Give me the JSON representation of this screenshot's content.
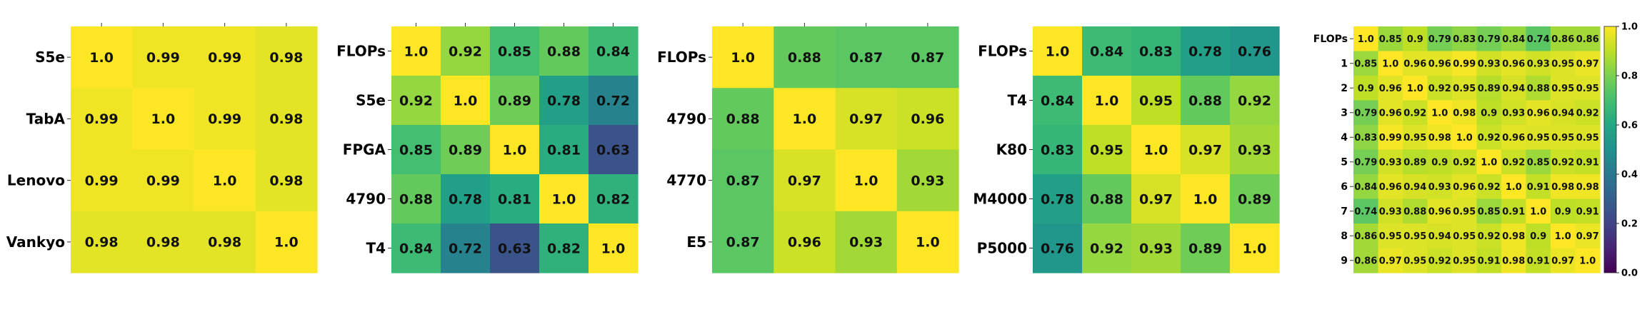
{
  "colorbar": {
    "ticks": [
      "0.0",
      "0.2",
      "0.4",
      "0.6",
      "0.8",
      "1.0"
    ],
    "tick_values": [
      0.0,
      0.2,
      0.4,
      0.6,
      0.8,
      1.0
    ],
    "range": [
      0.0,
      1.0
    ],
    "colormap": "viridis"
  },
  "chart_data": [
    {
      "type": "heatmap",
      "labels": [
        "S5e",
        "TabA",
        "Lenovo",
        "Vankyo"
      ],
      "show_xticks": true,
      "matrix": [
        [
          1.0,
          0.99,
          0.99,
          0.98
        ],
        [
          0.99,
          1.0,
          0.99,
          0.98
        ],
        [
          0.99,
          0.99,
          1.0,
          0.98
        ],
        [
          0.98,
          0.98,
          0.98,
          1.0
        ]
      ],
      "cell_text": [
        [
          "1.0",
          "0.99",
          "0.99",
          "0.98"
        ],
        [
          "0.99",
          "1.0",
          "0.99",
          "0.98"
        ],
        [
          "0.99",
          "0.99",
          "1.0",
          "0.98"
        ],
        [
          "0.98",
          "0.98",
          "0.98",
          "1.0"
        ]
      ]
    },
    {
      "type": "heatmap",
      "labels": [
        "FLOPs",
        "S5e",
        "FPGA",
        "4790",
        "T4"
      ],
      "show_xticks": true,
      "matrix": [
        [
          1.0,
          0.92,
          0.85,
          0.88,
          0.84
        ],
        [
          0.92,
          1.0,
          0.89,
          0.78,
          0.72
        ],
        [
          0.85,
          0.89,
          1.0,
          0.81,
          0.63
        ],
        [
          0.88,
          0.78,
          0.81,
          1.0,
          0.82
        ],
        [
          0.84,
          0.72,
          0.63,
          0.82,
          1.0
        ]
      ],
      "cell_text": [
        [
          "1.0",
          "0.92",
          "0.85",
          "0.88",
          "0.84"
        ],
        [
          "0.92",
          "1.0",
          "0.89",
          "0.78",
          "0.72"
        ],
        [
          "0.85",
          "0.89",
          "1.0",
          "0.81",
          "0.63"
        ],
        [
          "0.88",
          "0.78",
          "0.81",
          "1.0",
          "0.82"
        ],
        [
          "0.84",
          "0.72",
          "0.63",
          "0.82",
          "1.0"
        ]
      ]
    },
    {
      "type": "heatmap",
      "labels": [
        "FLOPs",
        "4790",
        "4770",
        "E5"
      ],
      "show_xticks": true,
      "matrix": [
        [
          1.0,
          0.88,
          0.87,
          0.87
        ],
        [
          0.88,
          1.0,
          0.97,
          0.96
        ],
        [
          0.87,
          0.97,
          1.0,
          0.93
        ],
        [
          0.87,
          0.96,
          0.93,
          1.0
        ]
      ],
      "cell_text": [
        [
          "1.0",
          "0.88",
          "0.87",
          "0.87"
        ],
        [
          "0.88",
          "1.0",
          "0.97",
          "0.96"
        ],
        [
          "0.87",
          "0.97",
          "1.0",
          "0.93"
        ],
        [
          "0.87",
          "0.96",
          "0.93",
          "1.0"
        ]
      ]
    },
    {
      "type": "heatmap",
      "labels": [
        "FLOPs",
        "T4",
        "K80",
        "M4000",
        "P5000"
      ],
      "show_xticks": false,
      "matrix": [
        [
          1.0,
          0.84,
          0.83,
          0.78,
          0.76
        ],
        [
          0.84,
          1.0,
          0.95,
          0.88,
          0.92
        ],
        [
          0.83,
          0.95,
          1.0,
          0.97,
          0.93
        ],
        [
          0.78,
          0.88,
          0.97,
          1.0,
          0.89
        ],
        [
          0.76,
          0.92,
          0.93,
          0.89,
          1.0
        ]
      ],
      "cell_text": [
        [
          "1.0",
          "0.84",
          "0.83",
          "0.78",
          "0.76"
        ],
        [
          "0.84",
          "1.0",
          "0.95",
          "0.88",
          "0.92"
        ],
        [
          "0.83",
          "0.95",
          "1.0",
          "0.97",
          "0.93"
        ],
        [
          "0.78",
          "0.88",
          "0.97",
          "1.0",
          "0.89"
        ],
        [
          "0.76",
          "0.92",
          "0.93",
          "0.89",
          "1.0"
        ]
      ]
    },
    {
      "type": "heatmap",
      "labels": [
        "FLOPs",
        "1",
        "2",
        "3",
        "4",
        "5",
        "6",
        "7",
        "8",
        "9"
      ],
      "show_xticks": false,
      "matrix": [
        [
          1.0,
          0.85,
          0.9,
          0.79,
          0.83,
          0.79,
          0.84,
          0.74,
          0.86,
          0.86
        ],
        [
          0.85,
          1.0,
          0.96,
          0.96,
          0.99,
          0.93,
          0.96,
          0.93,
          0.95,
          0.97
        ],
        [
          0.9,
          0.96,
          1.0,
          0.92,
          0.95,
          0.89,
          0.94,
          0.88,
          0.95,
          0.95
        ],
        [
          0.79,
          0.96,
          0.92,
          1.0,
          0.98,
          0.9,
          0.93,
          0.96,
          0.94,
          0.92
        ],
        [
          0.83,
          0.99,
          0.95,
          0.98,
          1.0,
          0.92,
          0.96,
          0.95,
          0.95,
          0.95
        ],
        [
          0.79,
          0.93,
          0.89,
          0.9,
          0.92,
          1.0,
          0.92,
          0.85,
          0.92,
          0.91
        ],
        [
          0.84,
          0.96,
          0.94,
          0.93,
          0.96,
          0.92,
          1.0,
          0.91,
          0.98,
          0.98
        ],
        [
          0.74,
          0.93,
          0.88,
          0.96,
          0.95,
          0.85,
          0.91,
          1.0,
          0.9,
          0.91
        ],
        [
          0.86,
          0.95,
          0.95,
          0.94,
          0.95,
          0.92,
          0.98,
          0.9,
          1.0,
          0.97
        ],
        [
          0.86,
          0.97,
          0.95,
          0.92,
          0.95,
          0.91,
          0.98,
          0.91,
          0.97,
          1.0
        ]
      ],
      "cell_text": [
        [
          "1.0",
          "0.85",
          "0.9",
          "0.79",
          "0.83",
          "0.79",
          "0.84",
          "0.74",
          "0.86",
          "0.86"
        ],
        [
          "0.85",
          "1.0",
          "0.96",
          "0.96",
          "0.99",
          "0.93",
          "0.96",
          "0.93",
          "0.95",
          "0.97"
        ],
        [
          "0.9",
          "0.96",
          "1.0",
          "0.92",
          "0.95",
          "0.89",
          "0.94",
          "0.88",
          "0.95",
          "0.95"
        ],
        [
          "0.79",
          "0.96",
          "0.92",
          "1.0",
          "0.98",
          "0.9",
          "0.93",
          "0.96",
          "0.94",
          "0.92"
        ],
        [
          "0.83",
          "0.99",
          "0.95",
          "0.98",
          "1.0",
          "0.92",
          "0.96",
          "0.95",
          "0.95",
          "0.95"
        ],
        [
          "0.79",
          "0.93",
          "0.89",
          "0.9",
          "0.92",
          "1.0",
          "0.92",
          "0.85",
          "0.92",
          "0.91"
        ],
        [
          "0.84",
          "0.96",
          "0.94",
          "0.93",
          "0.96",
          "0.92",
          "1.0",
          "0.91",
          "0.98",
          "0.98"
        ],
        [
          "0.74",
          "0.93",
          "0.88",
          "0.96",
          "0.95",
          "0.85",
          "0.91",
          "1.0",
          "0.9",
          "0.91"
        ],
        [
          "0.86",
          "0.95",
          "0.95",
          "0.94",
          "0.95",
          "0.92",
          "0.98",
          "0.9",
          "1.0",
          "0.97"
        ],
        [
          "0.86",
          "0.97",
          "0.95",
          "0.92",
          "0.95",
          "0.91",
          "0.98",
          "0.91",
          "0.97",
          "1.0"
        ]
      ]
    }
  ]
}
